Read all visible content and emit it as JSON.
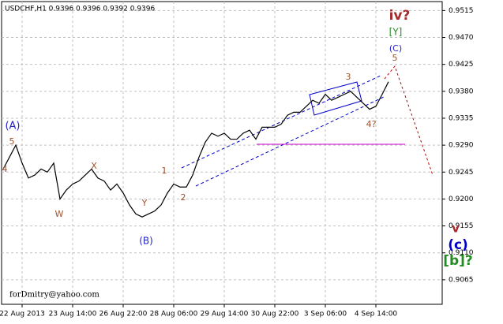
{
  "chart_data": {
    "type": "line",
    "title": "USDCHF,H1  0.9396 0.9396 0.9392 0.9396",
    "categories": [
      null,
      null,
      null,
      "22 Aug 2013",
      null,
      null,
      null,
      null,
      null,
      null,
      null,
      "23 Aug 14:00",
      null,
      null,
      null,
      null,
      null,
      null,
      null,
      "26 Aug 22:00",
      null,
      null,
      null,
      null,
      null,
      null,
      null,
      "28 Aug 06:00",
      null,
      null,
      null,
      null,
      null,
      null,
      null,
      "29 Aug 14:00",
      null,
      null,
      null,
      null,
      null,
      null,
      null,
      "30 Aug 22:00",
      null,
      null,
      null,
      null,
      null,
      null,
      null,
      "3 Sep 06:00",
      null,
      null,
      null,
      null,
      null,
      null,
      null,
      "4 Sep 14:00",
      null,
      null
    ],
    "series": [
      {
        "color": "#000000",
        "values": [
          0.925,
          0.927,
          0.929,
          0.926,
          0.9235,
          0.924,
          0.925,
          0.9245,
          0.926,
          0.92,
          0.9215,
          0.9225,
          0.923,
          0.924,
          0.925,
          0.9235,
          0.923,
          0.9215,
          0.9225,
          0.921,
          0.919,
          0.9175,
          0.917,
          0.9175,
          0.918,
          0.919,
          0.921,
          0.9225,
          0.922,
          0.922,
          0.924,
          0.927,
          0.9295,
          0.931,
          0.9305,
          0.931,
          0.93,
          0.93,
          0.931,
          0.9315,
          0.93,
          0.932,
          0.932,
          0.932,
          0.9325,
          0.934,
          0.9345,
          0.9345,
          0.9355,
          0.9365,
          0.936,
          0.9375,
          0.9365,
          0.937,
          0.9375,
          0.938,
          0.937,
          0.936,
          0.935,
          0.9355,
          0.9375,
          0.9396
        ]
      }
    ],
    "ylim": [
      0.9024,
      0.953
    ],
    "yticks": [
      0.9515,
      {
        "value": 0.947,
        "label": "0.9470"
      },
      0.9425,
      {
        "value": 0.938,
        "label": "0.9380"
      },
      0.9335,
      {
        "value": 0.929,
        "label": "0.9290"
      },
      0.9245,
      {
        "value": 0.92,
        "label": "0.9200"
      },
      0.9155,
      {
        "value": 0.911,
        "label": "0.9110"
      },
      0.9065
    ],
    "grid": true,
    "annotations": [
      "(A)",
      "5",
      "4",
      "W",
      "X",
      "Y",
      "(B)",
      "1",
      "2",
      "3",
      "4?",
      "5",
      "(C)",
      "[Y]",
      "iv?",
      "v",
      "(c)",
      "[b]?",
      "forDmitry@yahoo.com"
    ]
  }
}
